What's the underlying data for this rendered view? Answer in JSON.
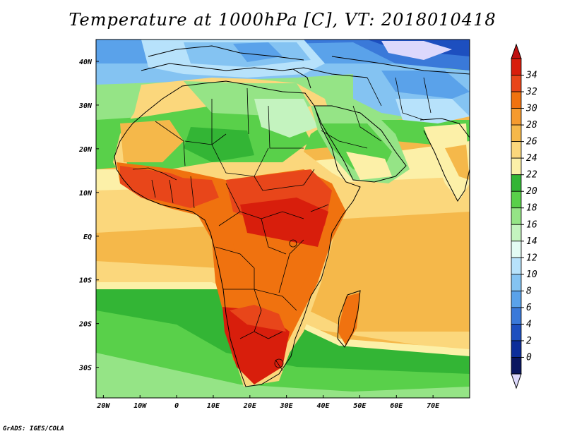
{
  "title": "Temperature at 1000hPa [C], VT: 2018010418",
  "credit": "GrADS: IGES/COLA",
  "map": {
    "lon_range": [
      -22,
      80
    ],
    "lat_range": [
      -37,
      45
    ],
    "lon_ticks": [
      {
        "lon": -20,
        "label": "20W"
      },
      {
        "lon": -10,
        "label": "10W"
      },
      {
        "lon": 0,
        "label": "0"
      },
      {
        "lon": 10,
        "label": "10E"
      },
      {
        "lon": 20,
        "label": "20E"
      },
      {
        "lon": 30,
        "label": "30E"
      },
      {
        "lon": 40,
        "label": "40E"
      },
      {
        "lon": 50,
        "label": "50E"
      },
      {
        "lon": 60,
        "label": "60E"
      },
      {
        "lon": 70,
        "label": "70E"
      }
    ],
    "lat_ticks": [
      {
        "lat": 40,
        "label": "40N"
      },
      {
        "lat": 30,
        "label": "30N"
      },
      {
        "lat": 20,
        "label": "20N"
      },
      {
        "lat": 10,
        "label": "10N"
      },
      {
        "lat": 0,
        "label": "EQ"
      },
      {
        "lat": -10,
        "label": "10S"
      },
      {
        "lat": -20,
        "label": "20S"
      },
      {
        "lat": -30,
        "label": "30S"
      }
    ]
  },
  "colorbar": {
    "levels": [
      "34",
      "32",
      "30",
      "28",
      "26",
      "24",
      "22",
      "20",
      "18",
      "16",
      "14",
      "12",
      "10",
      "8",
      "6",
      "4",
      "2",
      "0"
    ],
    "colors": [
      "#d81e0c",
      "#e8461a",
      "#f0720f",
      "#f59a2e",
      "#f5b84a",
      "#fbd77c",
      "#fcf0a8",
      "#33b535",
      "#59d04a",
      "#95e486",
      "#c4f3bf",
      "#e3fbf3",
      "#b7e2fb",
      "#84c3f2",
      "#5aa2ea",
      "#3a79d9",
      "#1d4fbf",
      "#0c2d9a",
      "#0a1660"
    ],
    "top_color": "#c01010",
    "bottom_color": "#dcd8fc"
  }
}
